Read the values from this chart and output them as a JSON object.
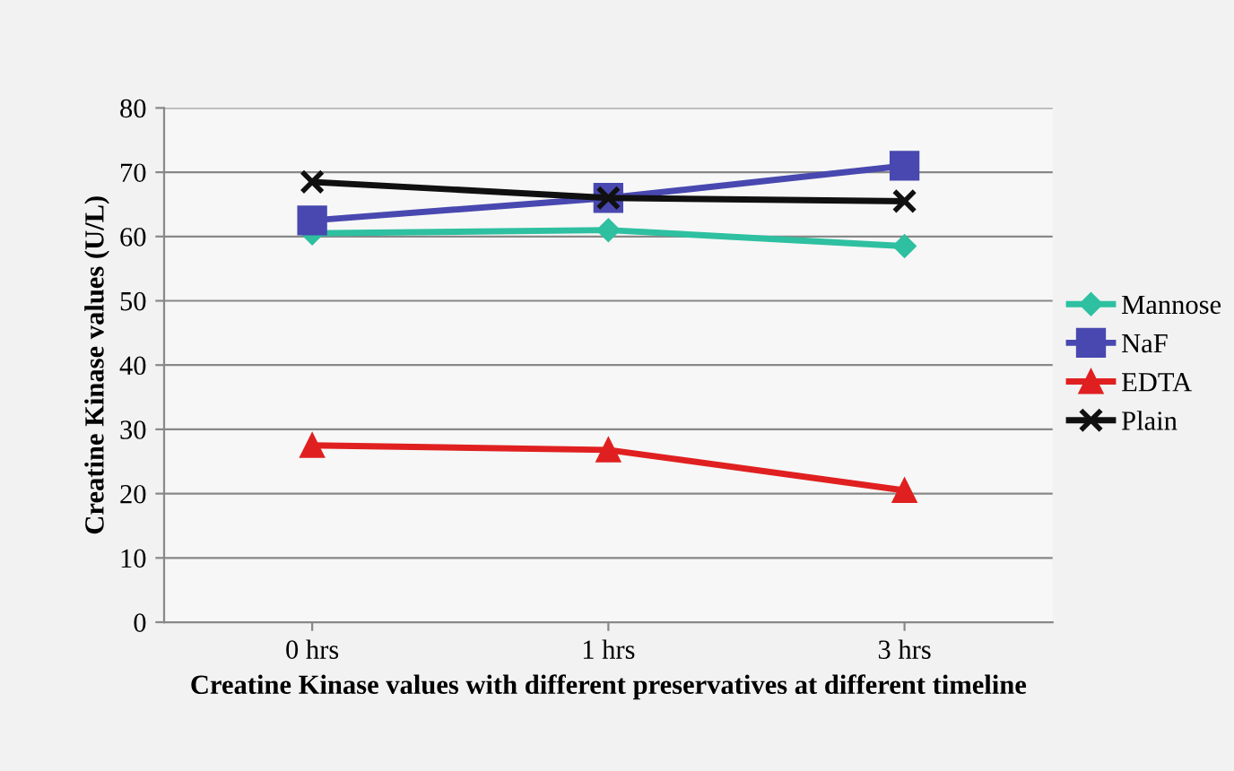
{
  "chart_data": {
    "type": "line",
    "xlabel": "Creatine Kinase values with different preservatives at different timeline",
    "ylabel": "Creatine Kinase values (U/L)",
    "categories": [
      "0 hrs",
      "1 hrs",
      "3 hrs"
    ],
    "series": [
      {
        "name": "Mannose",
        "color": "#2ec0a0",
        "marker": "diamond",
        "values": [
          60.5,
          61,
          58.5
        ]
      },
      {
        "name": "NaF",
        "color": "#4848b0",
        "marker": "square",
        "values": [
          62.5,
          66,
          71
        ]
      },
      {
        "name": "EDTA",
        "color": "#e02020",
        "marker": "triangle",
        "values": [
          27.5,
          26.8,
          20.5
        ]
      },
      {
        "name": "Plain",
        "color": "#101010",
        "marker": "cross",
        "values": [
          68.5,
          66,
          65.5
        ]
      }
    ],
    "ylim": [
      0,
      80
    ],
    "yticks": [
      0,
      10,
      20,
      30,
      40,
      50,
      60,
      70,
      80
    ],
    "grid": "y",
    "legend": "right",
    "line_style": "solid"
  }
}
